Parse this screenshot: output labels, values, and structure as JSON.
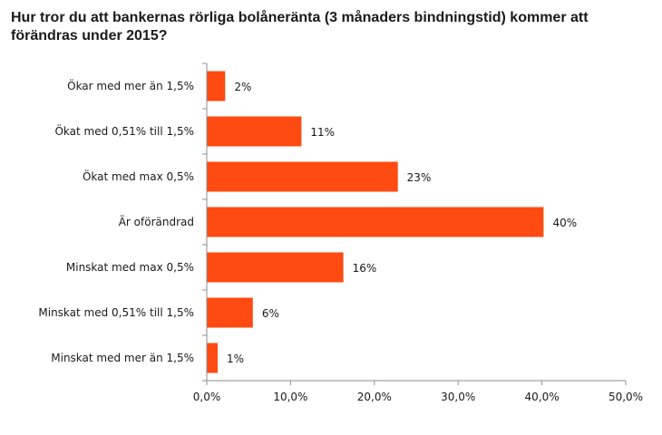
{
  "chart_data": {
    "type": "bar",
    "orientation": "horizontal",
    "title": "Hur tror du att bankernas rörliga bolåneränta (3 månaders bindningstid) kommer att förändras under 2015?",
    "categories": [
      "Ökar med mer än 1,5%",
      "Ökat med  0,51% till 1,5%",
      "Ökat med max 0,5%",
      "Är oförändrad",
      "Minskat med max 0,5%",
      "Minskat med 0,51% till 1,5%",
      "Minskat med mer än 1,5%"
    ],
    "values": [
      2.2,
      11.3,
      22.8,
      40.2,
      16.3,
      5.5,
      1.3
    ],
    "data_labels": [
      "2%",
      "11%",
      "23%",
      "40%",
      "16%",
      "6%",
      "1%"
    ],
    "xlim": [
      0,
      50
    ],
    "xticks": [
      0,
      10,
      20,
      30,
      40,
      50
    ],
    "xtick_labels": [
      "0,0%",
      "10,0%",
      "20,0%",
      "30,0%",
      "40,0%",
      "50,0%"
    ],
    "bar_color": "#ff4a12",
    "grid": false,
    "legend": "none"
  }
}
